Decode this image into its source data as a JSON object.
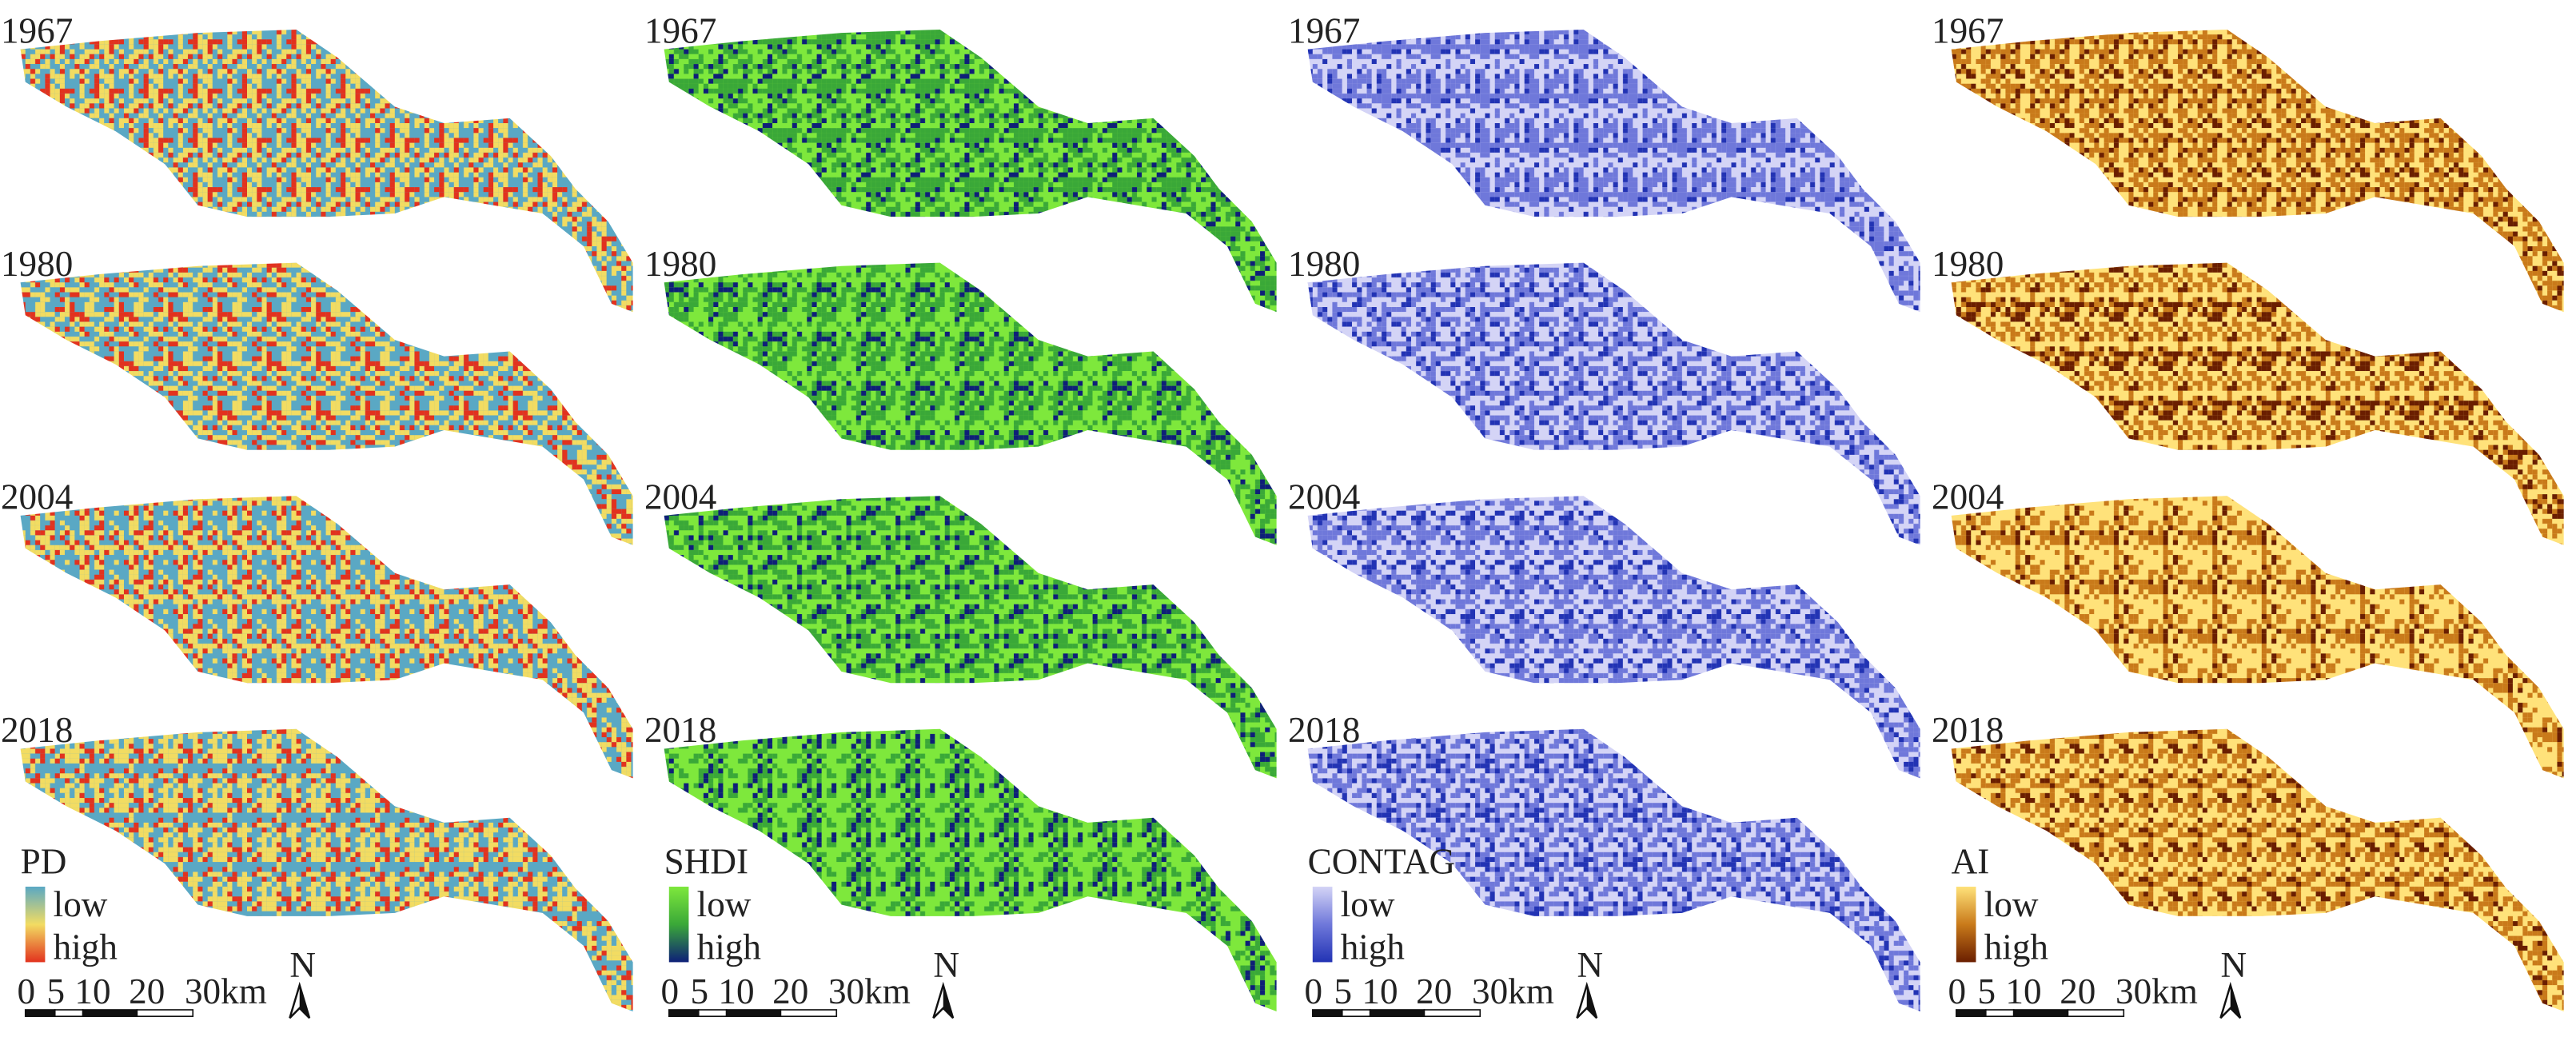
{
  "panels": [
    {
      "index": "PD",
      "low": "low",
      "high": "high",
      "colors": [
        "#5aa8c4",
        "#f2dc62",
        "#e2321e"
      ]
    },
    {
      "index": "SHDI",
      "low": "low",
      "high": "high",
      "colors": [
        "#7ee83c",
        "#3aa838",
        "#0e1f78"
      ]
    },
    {
      "index": "CONTAG",
      "low": "low",
      "high": "high",
      "colors": [
        "#d4d4f6",
        "#6f78da",
        "#2233b4"
      ]
    },
    {
      "index": "AI",
      "low": "low",
      "high": "high",
      "colors": [
        "#ffe27a",
        "#c97a1a",
        "#6a1e00"
      ]
    }
  ],
  "years": [
    "1967",
    "1980",
    "2004",
    "2018"
  ],
  "scale_bar": [
    "0",
    "5",
    "10",
    "20",
    "30km"
  ],
  "north": "N"
}
